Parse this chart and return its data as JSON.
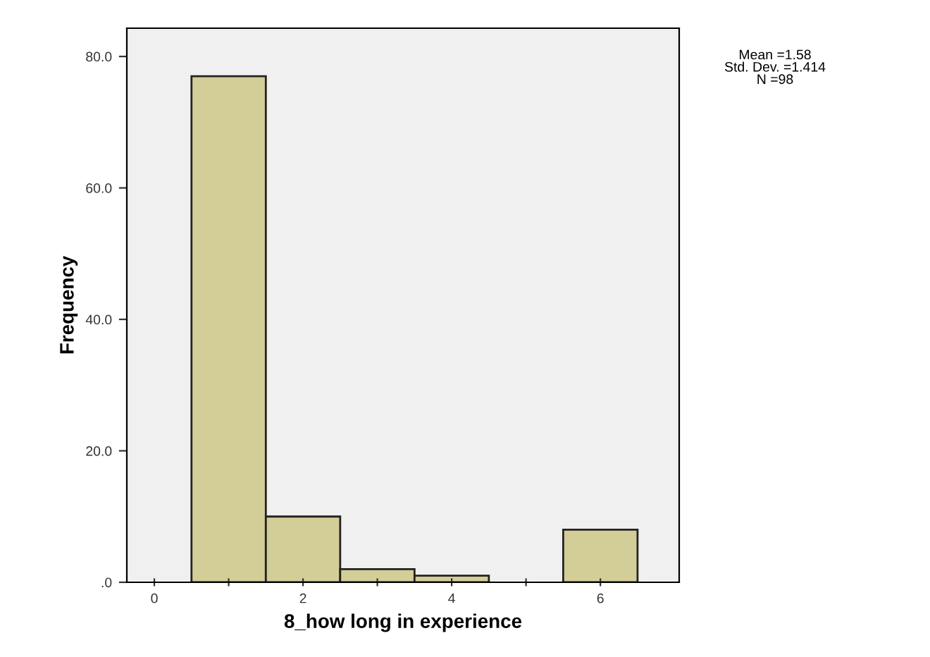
{
  "chart_data": {
    "type": "histogram",
    "xlabel": "8_how long in experience",
    "ylabel": "Frequency",
    "bins": [
      0.5,
      1.5,
      2.5,
      3.5,
      4.5,
      5.5,
      6.5
    ],
    "values": [
      77,
      10,
      2,
      1,
      0,
      8
    ],
    "color": "#d3ce97",
    "xlim": [
      -0.37,
      7.06
    ],
    "xticks": [
      0,
      {
        "value": 1,
        "label": null
      },
      2,
      {
        "value": 3,
        "label": null
      },
      4,
      {
        "value": 5,
        "label": null
      },
      6
    ],
    "ylim": [
      0,
      84.3
    ],
    "yticks": [
      {
        "value": 0,
        "label": ".0"
      },
      {
        "value": 20,
        "label": "20.0"
      },
      {
        "value": 40,
        "label": "40.0"
      },
      {
        "value": 60,
        "label": "60.0"
      },
      {
        "value": 80,
        "label": "80.0"
      }
    ],
    "grid": false,
    "legend": false,
    "annotations": [
      "Mean =1.58\nStd. Dev. =1.414\nN =98"
    ]
  }
}
